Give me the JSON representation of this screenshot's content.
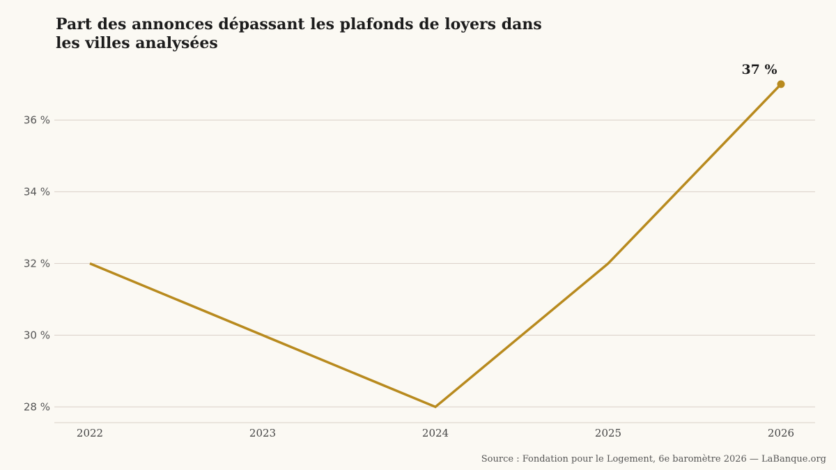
{
  "chart_data": {
    "type": "line",
    "title_lines": [
      "Part des annonces dépassant les plafonds de loyers dans",
      "les villes analysées"
    ],
    "x": [
      "2022",
      "2023",
      "2024",
      "2025",
      "2026"
    ],
    "series": [
      {
        "values": [
          32,
          30,
          28,
          32,
          37
        ]
      }
    ],
    "y_ticks": [
      28,
      30,
      32,
      34,
      36
    ],
    "y_tick_labels": [
      "28 %",
      "30 %",
      "32 %",
      "34 %",
      "36 %"
    ],
    "ylim": [
      27.6,
      37.6
    ],
    "end_label": "37 %",
    "grid": "horizontal",
    "line_color": "#b88a1e",
    "grid_color": "#d9cfc6",
    "source": "Source : Fondation pour le Logement, 6e baromètre 2026 — LaBanque.org"
  }
}
